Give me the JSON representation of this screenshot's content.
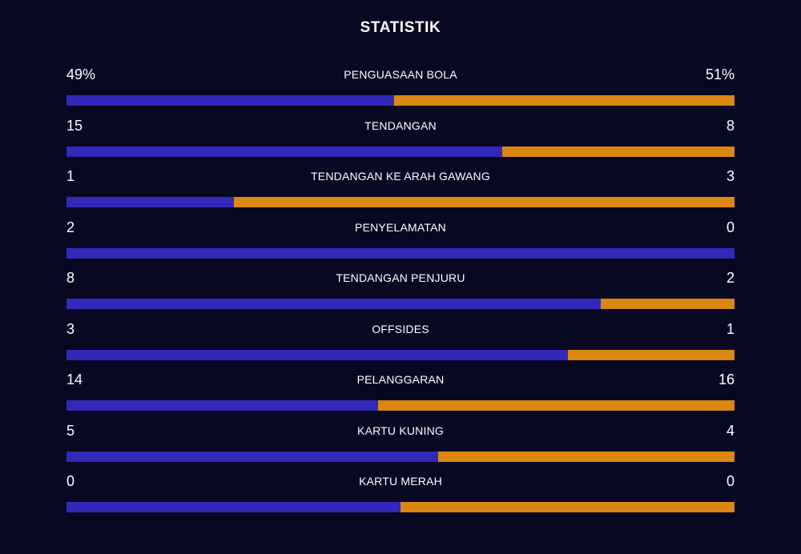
{
  "title": "STATISTIK",
  "colors": {
    "background": "#090822",
    "home": "#3129b9",
    "away": "#db8712"
  },
  "stats": [
    {
      "label": "PENGUASAAN BOLA",
      "home": "49%",
      "away": "51%",
      "home_share": 0.49
    },
    {
      "label": "TENDANGAN",
      "home": "15",
      "away": "8",
      "home_share": 0.652
    },
    {
      "label": "TENDANGAN KE ARAH GAWANG",
      "home": "1",
      "away": "3",
      "home_share": 0.25
    },
    {
      "label": "PENYELAMATAN",
      "home": "2",
      "away": "0",
      "home_share": 1.0
    },
    {
      "label": "TENDANGAN PENJURU",
      "home": "8",
      "away": "2",
      "home_share": 0.8
    },
    {
      "label": "OFFSIDES",
      "home": "3",
      "away": "1",
      "home_share": 0.75
    },
    {
      "label": "PELANGGARAN",
      "home": "14",
      "away": "16",
      "home_share": 0.467
    },
    {
      "label": "KARTU KUNING",
      "home": "5",
      "away": "4",
      "home_share": 0.556
    },
    {
      "label": "KARTU MERAH",
      "home": "0",
      "away": "0",
      "home_share": 0.5
    }
  ]
}
